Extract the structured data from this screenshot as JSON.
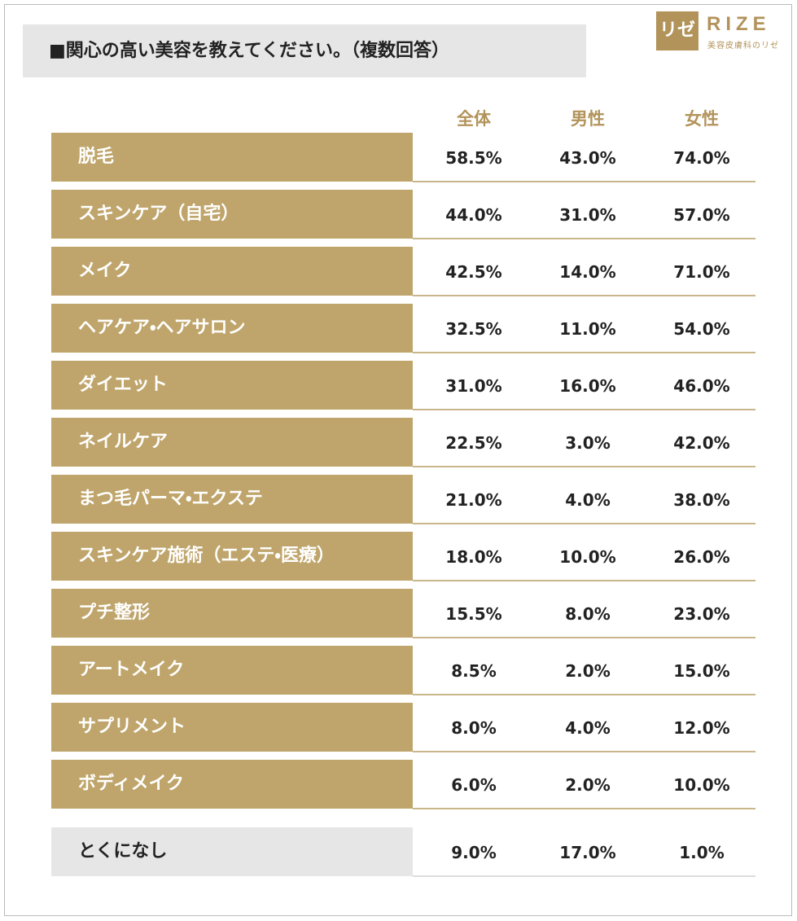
{
  "header": {
    "title": "■関心の高い美容を教えてください。（複数回答）",
    "logo": {
      "mark": "リゼ",
      "name": "RIZE",
      "subtitle": "美容皮膚科のリゼ"
    }
  },
  "table": {
    "columns": [
      "全体",
      "男性",
      "女性"
    ],
    "rows": [
      [
        "脱毛",
        "58.5%",
        "43.0%",
        "74.0%"
      ],
      [
        "スキンケア（自宅）",
        "44.0%",
        "31.0%",
        "57.0%"
      ],
      [
        "メイク",
        "42.5%",
        "14.0%",
        "71.0%"
      ],
      [
        "ヘアケア・ヘアサロン",
        "32.5%",
        "11.0%",
        "54.0%"
      ],
      [
        "ダイエット",
        "31.0%",
        "16.0%",
        "46.0%"
      ],
      [
        "ネイルケア",
        "22.5%",
        "3.0%",
        "42.0%"
      ],
      [
        "まつ毛パーマ・エクステ",
        "21.0%",
        "4.0%",
        "38.0%"
      ],
      [
        "スキンケア施術（エステ・医療）",
        "18.0%",
        "10.0%",
        "26.0%"
      ],
      [
        "プチ整形",
        "15.5%",
        "8.0%",
        "23.0%"
      ],
      [
        "アートメイク",
        "8.5%",
        "2.0%",
        "15.0%"
      ],
      [
        "サプリメント",
        "8.0%",
        "4.0%",
        "12.0%"
      ],
      [
        "ボディメイク",
        "6.0%",
        "2.0%",
        "10.0%"
      ]
    ],
    "footer_row": [
      "とくになし",
      "9.0%",
      "17.0%",
      "1.0%"
    ]
  }
}
